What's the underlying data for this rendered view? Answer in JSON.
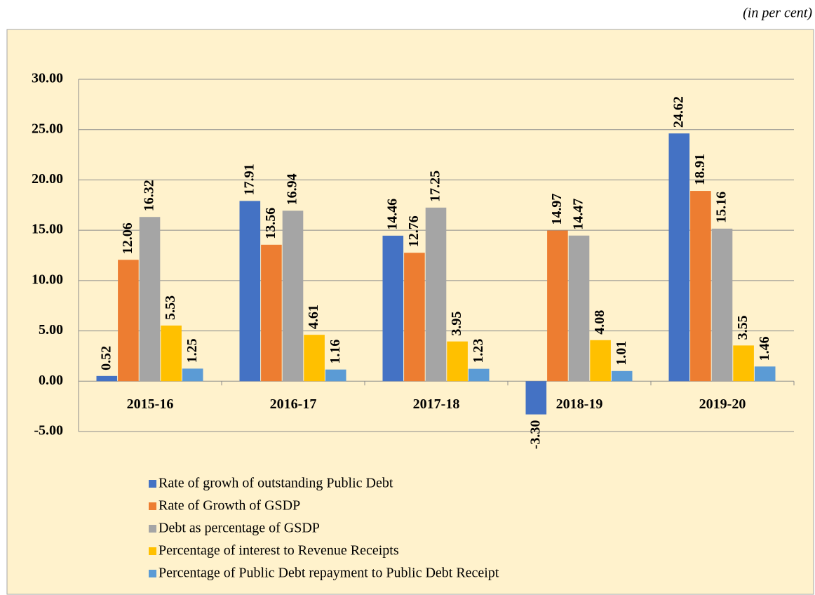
{
  "chart_data": {
    "type": "bar",
    "note": "(in per cent)",
    "categories": [
      "2015-16",
      "2016-17",
      "2017-18",
      "2018-19",
      "2019-20"
    ],
    "series": [
      {
        "name": "Rate of growh of outstanding Public Debt",
        "color": "#4472c4",
        "values": [
          0.52,
          17.91,
          14.46,
          -3.3,
          24.62
        ],
        "value_labels": [
          "0.52",
          "17.91",
          "14.46",
          "-3.30",
          "24.62"
        ]
      },
      {
        "name": "Rate of Growth of GSDP",
        "color": "#ed7d31",
        "values": [
          12.06,
          13.56,
          12.76,
          14.97,
          18.91
        ],
        "value_labels": [
          "12.06",
          "13.56",
          "12.76",
          "14.97",
          "18.91"
        ]
      },
      {
        "name": "Debt as percentage of GSDP",
        "color": "#a5a5a5",
        "values": [
          16.32,
          16.94,
          17.25,
          14.47,
          15.16
        ],
        "value_labels": [
          "16.32",
          "16.94",
          "17.25",
          "14.47",
          "15.16"
        ]
      },
      {
        "name": "Percentage of interest to Revenue Receipts",
        "color": "#ffc000",
        "values": [
          5.53,
          4.61,
          3.95,
          4.08,
          3.55
        ],
        "value_labels": [
          "5.53",
          "4.61",
          "3.95",
          "4.08",
          "3.55"
        ]
      },
      {
        "name": "Percentage of Public Debt repayment to Public Debt Receipt",
        "color": "#5b9bd5",
        "values": [
          1.25,
          1.16,
          1.23,
          1.01,
          1.46
        ],
        "value_labels": [
          "1.25",
          "1.16",
          "1.23",
          "1.01",
          "1.46"
        ]
      }
    ],
    "ylim": [
      -5,
      30
    ],
    "yticks": [
      {
        "value": -5,
        "label": "-5.00"
      },
      {
        "value": 0,
        "label": "0.00"
      },
      {
        "value": 5,
        "label": "5.00"
      },
      {
        "value": 10,
        "label": "10.00"
      },
      {
        "value": 15,
        "label": "15.00"
      },
      {
        "value": 20,
        "label": "20.00"
      },
      {
        "value": 25,
        "label": "25.00"
      },
      {
        "value": 30,
        "label": "30.00"
      }
    ],
    "grid": true,
    "legend": "bottom"
  }
}
